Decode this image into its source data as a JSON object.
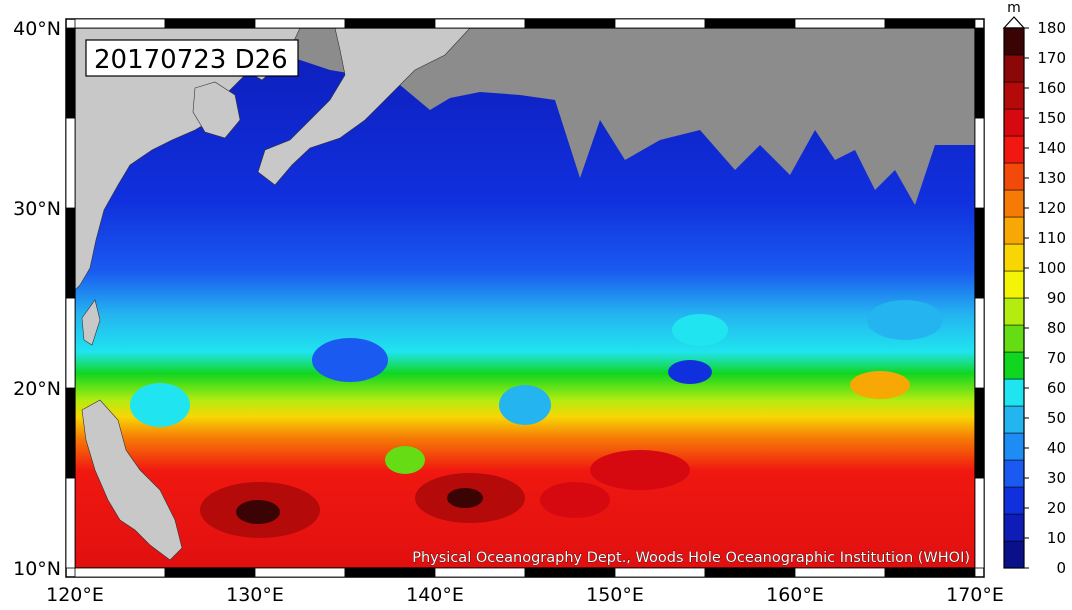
{
  "map": {
    "title_label": "20170723 D26",
    "credit": "Physical Oceanography Dept., Woods Hole Oceanographic Institution (WHOI)",
    "lon_range": [
      120,
      170
    ],
    "lat_range": [
      10,
      40
    ],
    "lat_ticks": [
      {
        "value": 10,
        "label": "10°N"
      },
      {
        "value": 20,
        "label": "20°N"
      },
      {
        "value": 30,
        "label": "30°N"
      },
      {
        "value": 40,
        "label": "40°N"
      }
    ],
    "lon_ticks": [
      {
        "value": 120,
        "label": "120°E"
      },
      {
        "value": 130,
        "label": "130°E"
      },
      {
        "value": 140,
        "label": "140°E"
      },
      {
        "value": 150,
        "label": "150°E"
      },
      {
        "value": 160,
        "label": "160°E"
      },
      {
        "value": 170,
        "label": "170°E"
      }
    ],
    "colors": {
      "land": "#c8c8c8",
      "missing": "#8c8c8c"
    }
  },
  "colorbar": {
    "unit": "m",
    "ticks": [
      "180",
      "170",
      "160",
      "150",
      "140",
      "130",
      "120",
      "110",
      "100",
      "90",
      "80",
      "70",
      "60",
      "50",
      "40",
      "30",
      "20",
      "10",
      "0"
    ],
    "colors": [
      "#0a0f8a",
      "#0e1cb8",
      "#1030dd",
      "#1a5af0",
      "#1e8cf5",
      "#24b4f0",
      "#20e4ef",
      "#10d620",
      "#66dc14",
      "#b4ec10",
      "#f4f406",
      "#f8d604",
      "#f8a804",
      "#f67a06",
      "#f24a0a",
      "#f01810",
      "#d60810",
      "#b40a0a",
      "#8a0808",
      "#3a0404"
    ]
  }
}
